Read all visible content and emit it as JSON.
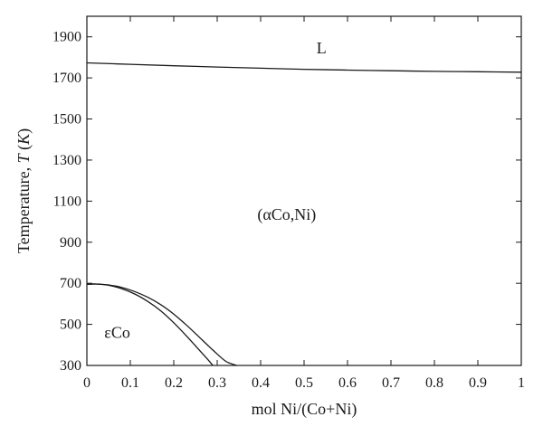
{
  "chart_data": {
    "type": "line",
    "title": "",
    "xlabel": "mol Ni/(Co+Ni)",
    "ylabel_prefix": "Temperature, ",
    "ylabel_italic": "T",
    "ylabel_unit_open": " (",
    "ylabel_unit_italic": "K",
    "ylabel_unit_close": ")",
    "xlim": [
      0,
      1
    ],
    "ylim": [
      300,
      2000
    ],
    "x_ticks": [
      0,
      0.1,
      0.2,
      0.3,
      0.4,
      0.5,
      0.6,
      0.7,
      0.8,
      0.9,
      1
    ],
    "x_tick_labels": [
      "0",
      "0.1",
      "0.2",
      "0.3",
      "0.4",
      "0.5",
      "0.6",
      "0.7",
      "0.8",
      "0.9",
      "1"
    ],
    "y_ticks": [
      300,
      500,
      700,
      900,
      1100,
      1300,
      1500,
      1700,
      1900
    ],
    "y_tick_labels": [
      "300",
      "500",
      "700",
      "900",
      "1100",
      "1300",
      "1500",
      "1700",
      "1900"
    ],
    "grid": false,
    "series": [
      {
        "x": [
          0,
          0.1,
          0.2,
          0.3,
          0.4,
          0.5,
          0.6,
          0.7,
          0.8,
          0.9,
          1
        ],
        "y": [
          1773,
          1766,
          1759,
          1753,
          1747,
          1742,
          1738,
          1735,
          1732,
          1730,
          1728
        ]
      },
      {
        "x": [
          0,
          0.02,
          0.05,
          0.08,
          0.11,
          0.14,
          0.17,
          0.2,
          0.23,
          0.26,
          0.29,
          0.32,
          0.345
        ],
        "y": [
          695,
          696,
          692,
          680,
          660,
          632,
          596,
          550,
          495,
          435,
          375,
          320,
          300
        ]
      },
      {
        "x": [
          0,
          0.02,
          0.05,
          0.08,
          0.11,
          0.14,
          0.17,
          0.2,
          0.23,
          0.26,
          0.28,
          0.29
        ],
        "y": [
          695,
          697,
          690,
          674,
          648,
          612,
          566,
          508,
          442,
          372,
          325,
          300
        ]
      }
    ],
    "annotations": [
      {
        "text": "L",
        "x": 0.54,
        "y": 1820
      },
      {
        "text": "(αCo,Ni)",
        "x": 0.46,
        "y": 1010
      },
      {
        "text": "εCo",
        "x": 0.07,
        "y": 435
      }
    ]
  }
}
